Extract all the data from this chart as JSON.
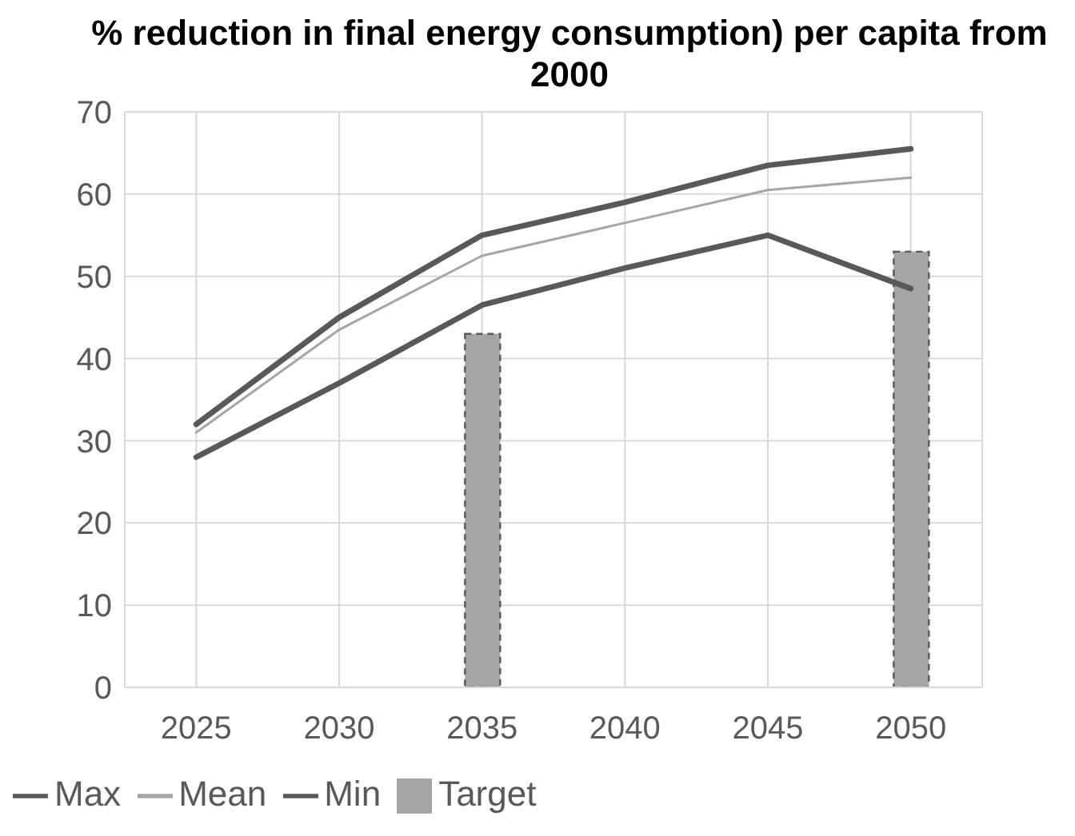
{
  "chart_data": {
    "type": "line",
    "title": "% reduction in final energy consumption) per capita from 2000",
    "categories": [
      "2025",
      "2030",
      "2035",
      "2040",
      "2045",
      "2050"
    ],
    "series": [
      {
        "name": "Target",
        "type": "bar",
        "color": "#a5a5a5",
        "values": [
          null,
          null,
          43,
          null,
          null,
          53
        ]
      },
      {
        "name": "Max",
        "color": "#595959",
        "values": [
          32,
          45,
          55,
          59,
          63.5,
          65.5
        ]
      },
      {
        "name": "Min",
        "color": "#595959",
        "values": [
          28,
          37,
          46.5,
          51,
          55,
          48.5
        ]
      },
      {
        "name": "Mean",
        "color": "#a6a6a6",
        "values": [
          31,
          43.5,
          52.5,
          56.5,
          60.5,
          62
        ]
      }
    ],
    "ylim": [
      0,
      70
    ],
    "yticks": [
      0,
      10,
      20,
      30,
      40,
      50,
      60,
      70
    ],
    "grid": true,
    "legend": "bottom left"
  }
}
